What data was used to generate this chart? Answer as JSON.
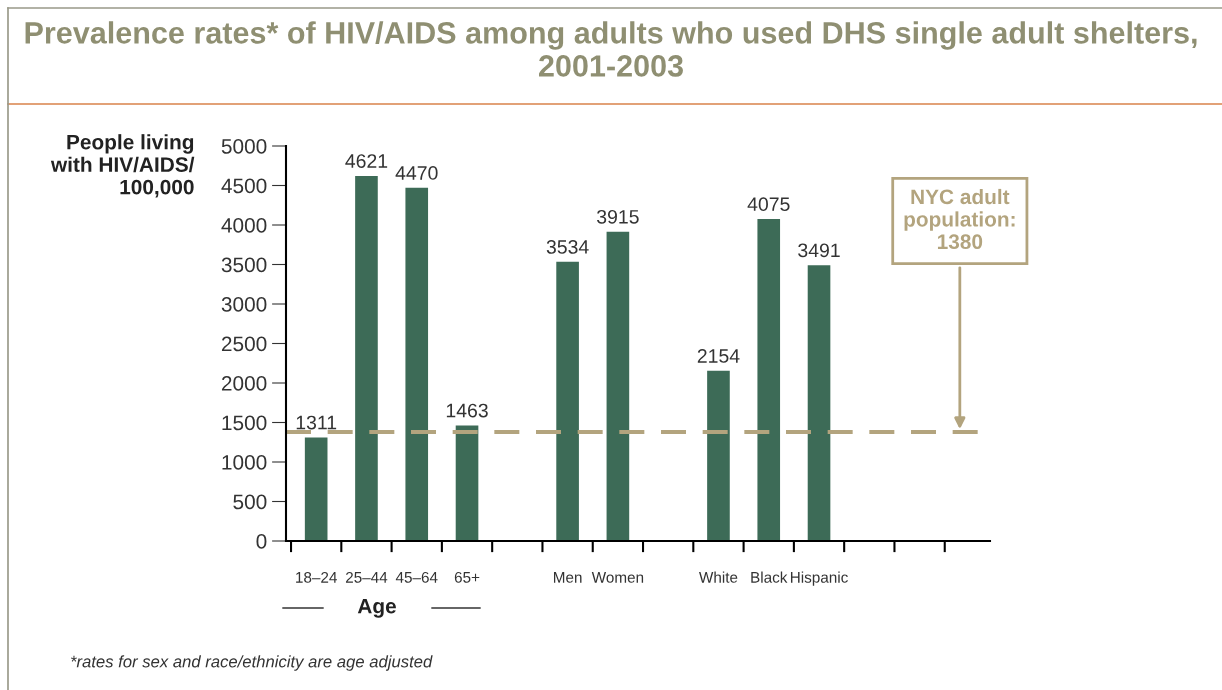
{
  "chart_data": {
    "type": "bar",
    "title": "Prevalence rates* of HIV/AIDS among adults who used DHS single adult shelters, 2001-2003",
    "ylabel": "People living\nwith HIV/AIDS/\n100,000",
    "categories": [
      "18–24",
      "25–44",
      "45–64",
      "65+",
      null,
      "Men",
      "Women",
      null,
      "White",
      "Black",
      "Hispanic",
      null,
      null,
      null
    ],
    "values": [
      1311,
      4621,
      4470,
      1463,
      null,
      3534,
      3915,
      null,
      2154,
      4075,
      3491,
      null,
      null,
      null
    ],
    "color": "#3d6b57",
    "ylim": [
      0,
      5000
    ],
    "yticks": [
      0,
      500,
      1000,
      1500,
      2000,
      2500,
      3000,
      3500,
      4000,
      4500,
      5000
    ],
    "data_labels": true,
    "grid": false,
    "ref_lines": [
      {
        "axis": "y",
        "value": 1380,
        "label": "NYC adult\npopulation:\n1380",
        "color": "#b3a47e",
        "line_style": "dashed"
      }
    ],
    "annotations": [
      "Age",
      "*rates for sex and race/ethnicity are age adjusted"
    ]
  }
}
